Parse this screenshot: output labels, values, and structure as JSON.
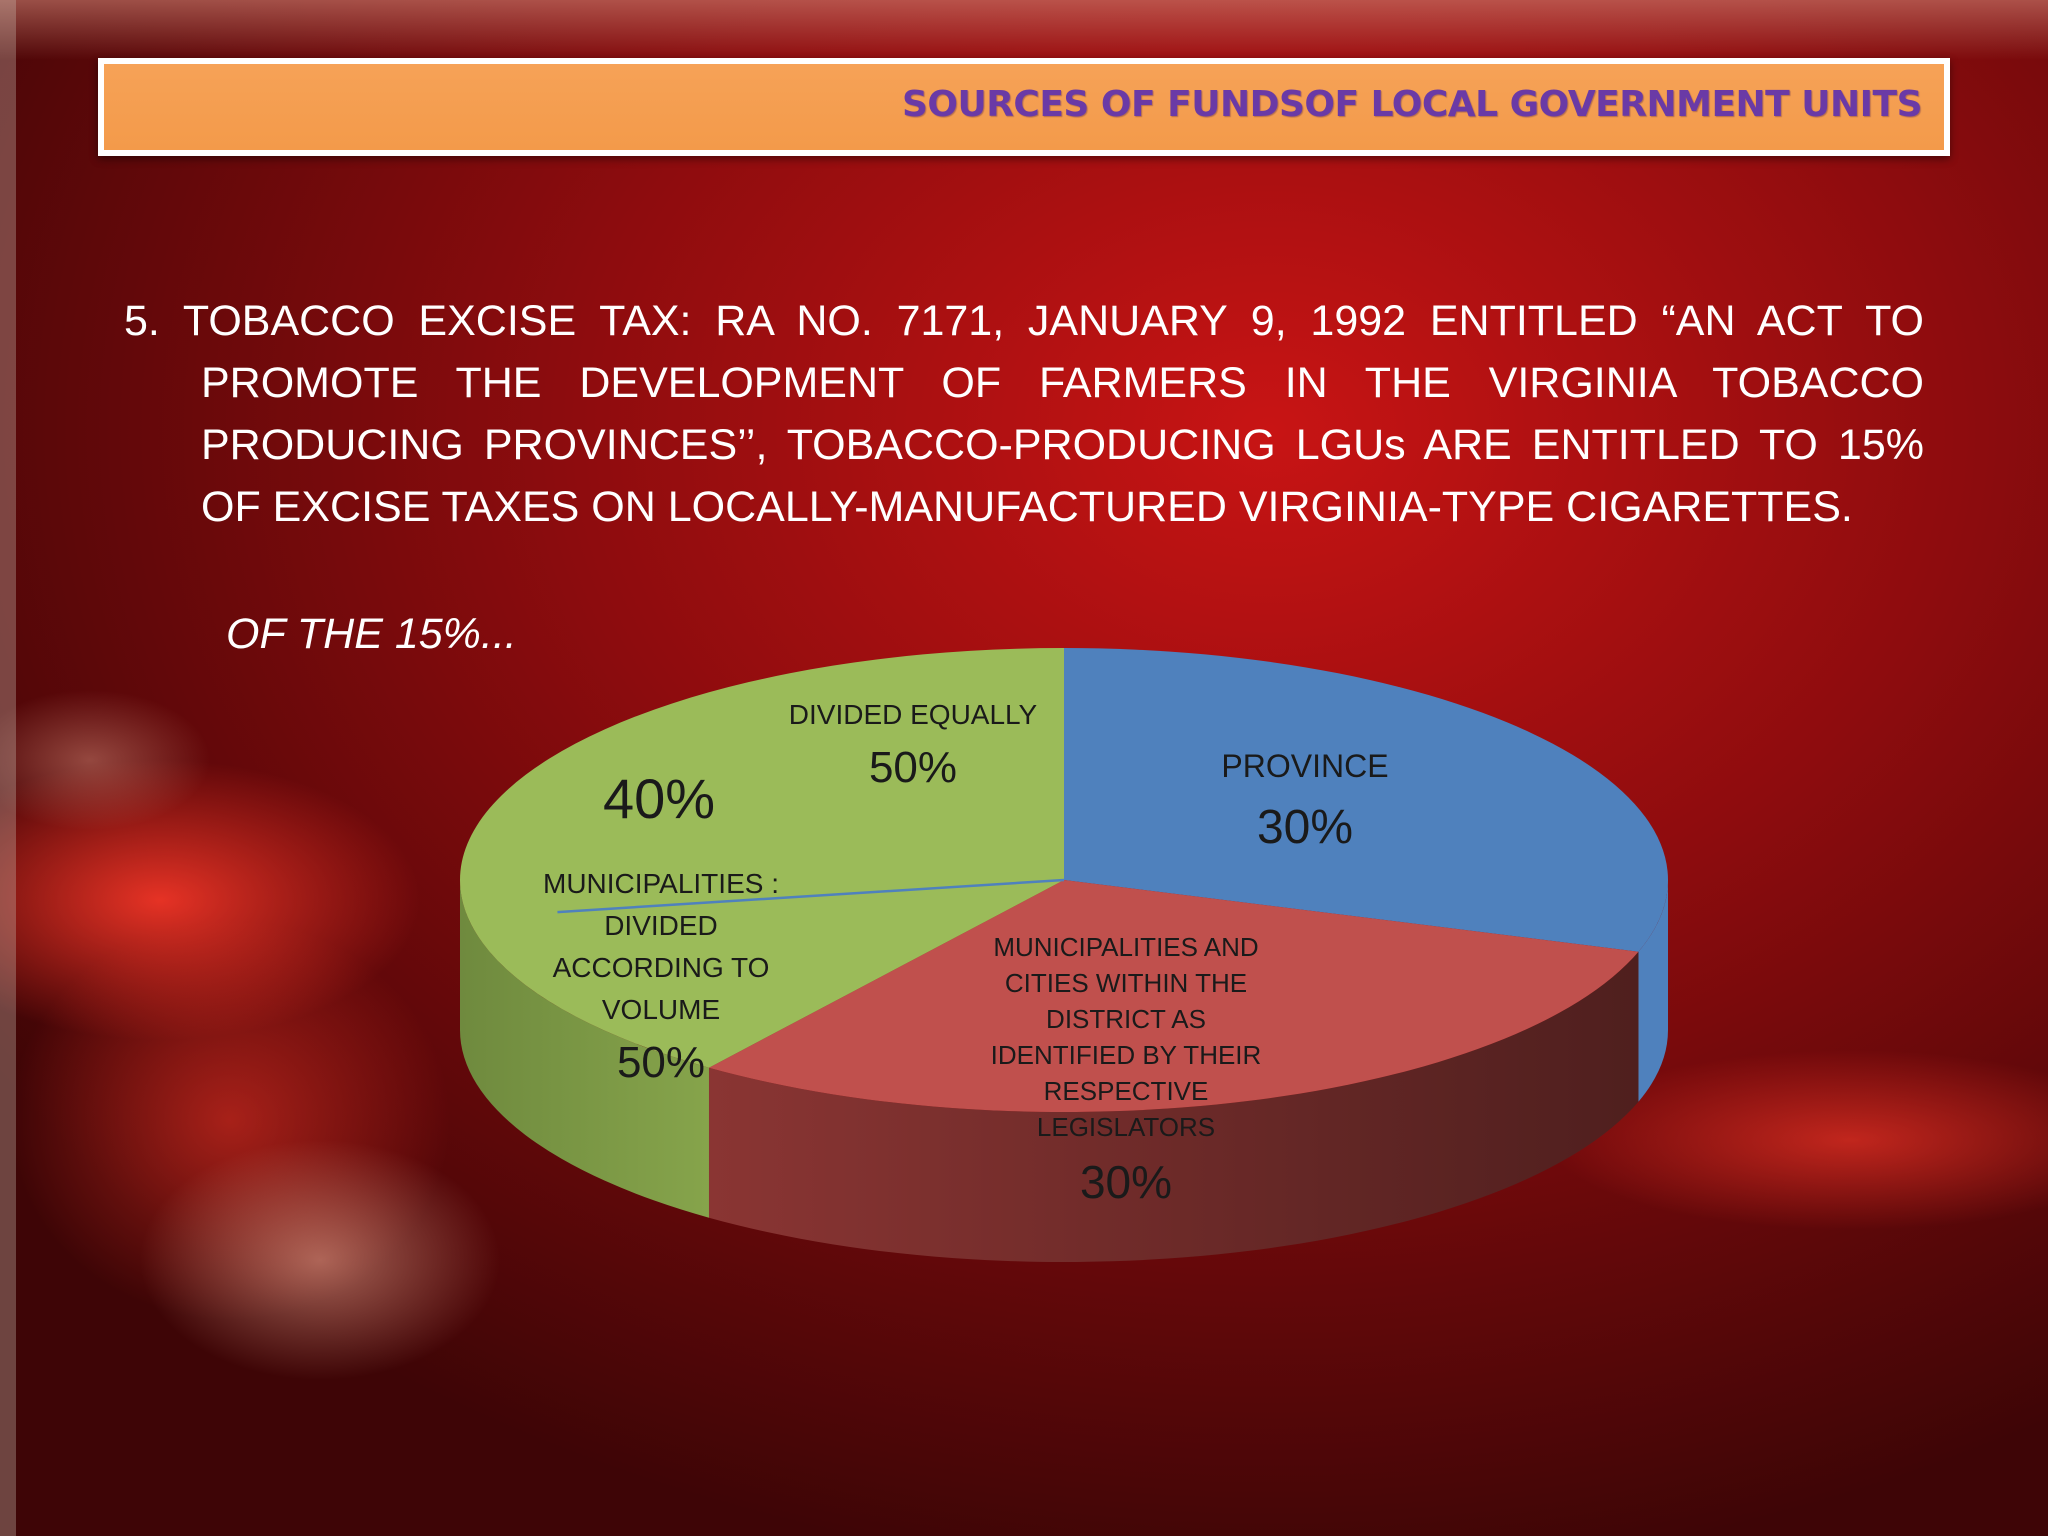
{
  "header": {
    "title": "SOURCES OF FUNDSOF LOCAL GOVERNMENT UNITS"
  },
  "body": {
    "paragraph": "5. TOBACCO EXCISE TAX: RA NO. 7171, JANUARY 9, 1992 ENTITLED “AN ACT TO PROMOTE THE DEVELOPMENT OF FARMERS IN THE VIRGINIA TOBACCO PRODUCING PROVINCES’’, TOBACCO-PRODUCING LGUs ARE ENTITLED  TO 15% OF EXCISE TAXES ON LOCALLY-MANUFACTURED VIRGINIA-TYPE CIGARETTES.",
    "subhead": "OF THE 15%..."
  },
  "chart_data": {
    "type": "pie",
    "colors": {
      "province": "#4f81bd",
      "districts": "#c0504d",
      "municipalities": "#9bbb59",
      "divider": "#4f81bd"
    },
    "slices": [
      {
        "label": "PROVINCE",
        "value": 30,
        "display": "30%"
      },
      {
        "label": "MUNICIPALITIES AND CITIES WITHIN THE DISTRICT AS IDENTIFIED BY THEIR RESPECTIVE LEGISLATORS",
        "value": 30,
        "display": "30%"
      },
      {
        "label": "",
        "value": 40,
        "display": "40%"
      }
    ],
    "sub_split": [
      {
        "label": "DIVIDED EQUALLY",
        "value": 50,
        "display": "50%"
      },
      {
        "label": "MUNICIPALITIES : DIVIDED ACCORDING TO VOLUME",
        "value": 50,
        "display": "50%"
      }
    ],
    "labels": {
      "province": "PROVINCE",
      "province_pct": "30%",
      "districts_lines": [
        "MUNICIPALITIES AND",
        "CITIES WITHIN THE",
        "DISTRICT AS",
        "IDENTIFIED BY THEIR",
        "RESPECTIVE",
        "LEGISLATORS"
      ],
      "districts_pct": "30%",
      "muni_pct": "40%",
      "equal_label": "DIVIDED EQUALLY",
      "equal_pct": "50%",
      "volume_lines": [
        "MUNICIPALITIES :",
        "DIVIDED",
        "ACCORDING TO",
        "VOLUME"
      ],
      "volume_pct": "50%"
    }
  }
}
